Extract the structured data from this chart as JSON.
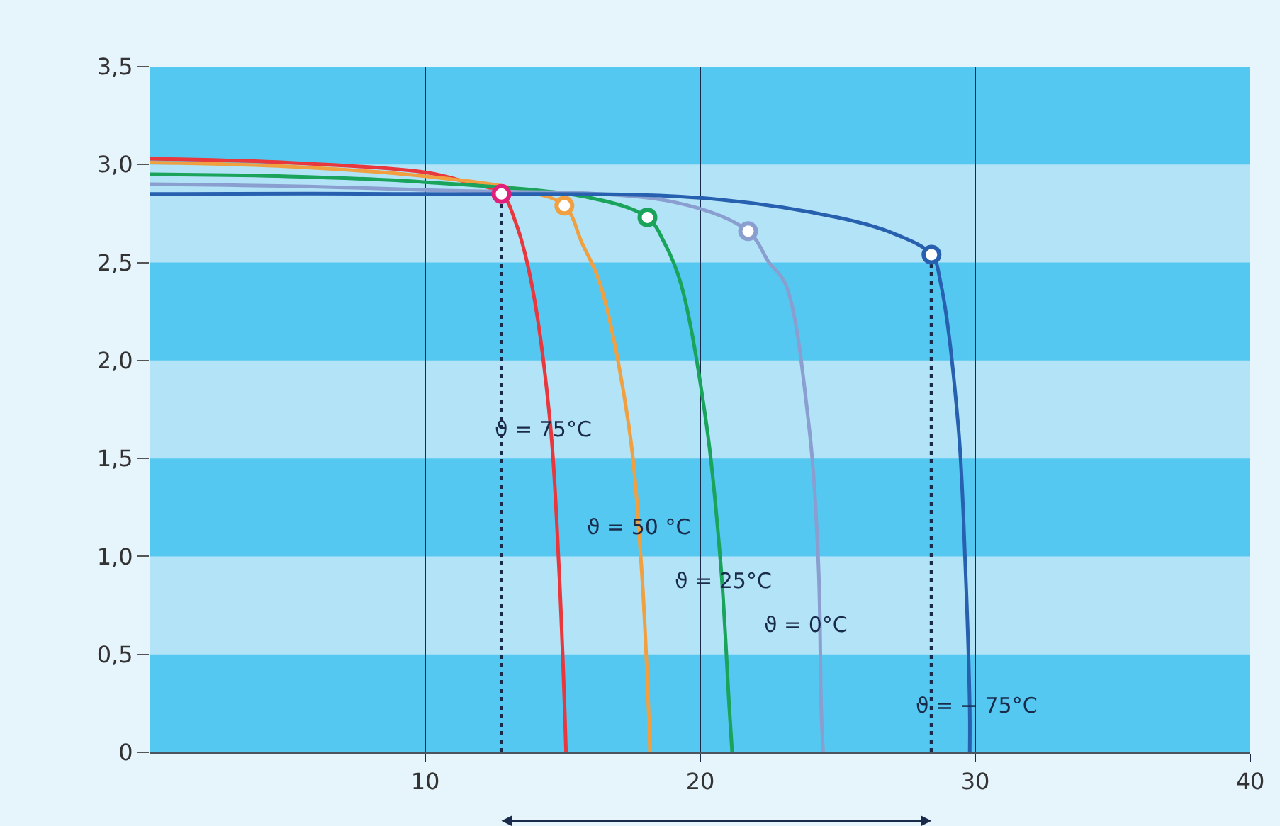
{
  "chart_data": {
    "type": "line",
    "xlim": [
      0,
      40
    ],
    "ylim": [
      0,
      3.5
    ],
    "xticks": [
      10,
      20,
      30,
      40
    ],
    "yticks": [
      {
        "value": 0,
        "label": "0"
      },
      {
        "value": 0.5,
        "label": "0,5"
      },
      {
        "value": 1,
        "label": "1,0"
      },
      {
        "value": 1.5,
        "label": "1,5"
      },
      {
        "value": 2,
        "label": "2,0"
      },
      {
        "value": 2.5,
        "label": "2,5"
      },
      {
        "value": 3,
        "label": "3,0"
      },
      {
        "value": 3.5,
        "label": "3,5"
      }
    ],
    "grid": "x",
    "marker": "none",
    "line_style": "solid",
    "bands": [
      {
        "axis": "y",
        "from": 0.5,
        "to": 1.0,
        "color": "#b3e3f7"
      },
      {
        "axis": "y",
        "from": 1.5,
        "to": 2.0,
        "color": "#b3e3f7"
      },
      {
        "axis": "y",
        "from": 2.5,
        "to": 3.0,
        "color": "#b3e3f7"
      }
    ],
    "series": [
      {
        "color": "#e8383d",
        "x": [
          0,
          5,
          10,
          11.5,
          12.77,
          13.3,
          13.87,
          14.55,
          14.86,
          15.07,
          15.12
        ],
        "values": [
          3.03,
          3.01,
          2.96,
          2.91,
          2.85,
          2.7,
          2.39,
          1.67,
          0.95,
          0.22,
          0
        ]
      },
      {
        "color": "#f0a040",
        "x": [
          0,
          5,
          10,
          13.5,
          15.06,
          15.7,
          16.36,
          17.4,
          17.86,
          18.12,
          18.17
        ],
        "values": [
          3.01,
          2.99,
          2.94,
          2.87,
          2.79,
          2.6,
          2.39,
          1.67,
          0.95,
          0.22,
          0
        ]
      },
      {
        "color": "#1aa35a",
        "x": [
          0,
          5,
          10,
          16,
          18.08,
          18.7,
          19.3,
          20.23,
          20.75,
          21.06,
          21.16
        ],
        "values": [
          2.95,
          2.94,
          2.91,
          2.83,
          2.73,
          2.6,
          2.39,
          1.67,
          0.95,
          0.22,
          0
        ]
      },
      {
        "color": "#8a9fd0",
        "x": [
          0,
          5,
          10,
          19,
          21.74,
          22.5,
          23.1,
          23.95,
          24.3,
          24.4,
          24.47
        ],
        "values": [
          2.9,
          2.89,
          2.87,
          2.81,
          2.66,
          2.5,
          2.39,
          1.67,
          0.95,
          0.22,
          0
        ]
      },
      {
        "color": "#2860b0",
        "x": [
          0,
          10,
          20,
          25,
          27,
          28.41,
          28.75,
          29.38,
          29.64,
          29.8,
          29.8
        ],
        "values": [
          2.85,
          2.85,
          2.83,
          2.73,
          2.65,
          2.54,
          2.39,
          1.67,
          0.95,
          0.22,
          0
        ]
      },
      {
        "color": "#1a2a4a",
        "line_style": "dotted",
        "x": [
          12.77,
          12.77
        ],
        "values": [
          0,
          2.85
        ]
      },
      {
        "color": "#1a2a4a",
        "line_style": "dotted",
        "x": [
          28.41,
          28.41
        ],
        "values": [
          0,
          2.54
        ]
      },
      {
        "type": "scatter",
        "marker": "circle",
        "x": [
          12.77,
          15.06,
          18.08,
          21.74,
          28.41
        ],
        "values": [
          2.85,
          2.79,
          2.73,
          2.66,
          2.54
        ],
        "colors": [
          "#e0207a",
          "#f0a040",
          "#1aa35a",
          "#8a9fd0",
          "#2860b0"
        ]
      }
    ],
    "annotations": [
      "ϑ = 75°C",
      "ϑ = 50 °C",
      "ϑ = 25°C",
      "ϑ = 0°C",
      "ϑ = − 75°C"
    ]
  }
}
